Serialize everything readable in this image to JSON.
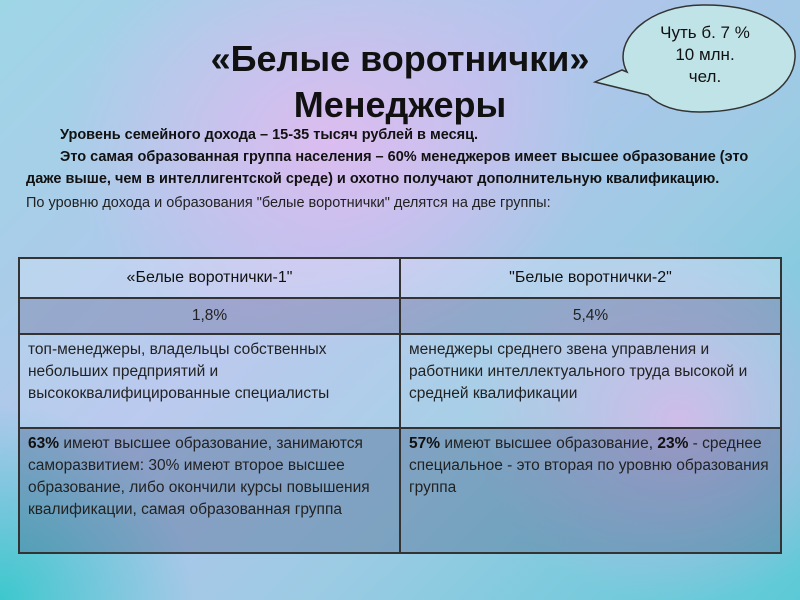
{
  "title": {
    "line1": "«Белые воротнички»",
    "line2": "Менеджеры"
  },
  "callout": {
    "line1": "Чуть б. 7 %",
    "line2": "10 млн.",
    "line3": "чел.",
    "fill": "#bfe3e6"
  },
  "intro": {
    "p1": "Уровень семейного дохода – 15-35 тысяч рублей в месяц.",
    "p2": "Это самая образованная группа населения – 60% менеджеров имеет высшее образование (это даже выше, чем в интеллигентской среде) и охотно получают дополнительную квалификацию.",
    "note": "По уровню дохода и образования \"белые воротнички\" делятся на две группы:"
  },
  "table": {
    "headers": [
      "«Белые воротнички-1\"",
      "\"Белые воротнички-2\""
    ],
    "shares": [
      "1,8%",
      "5,4%"
    ],
    "descriptions": [
      "топ-менеджеры, владельцы собственных небольших предприятий и высококвалифицированные специалисты",
      "менеджеры среднего звена управления и работники интеллектуального труда высокой и средней квалификации"
    ],
    "education": [
      {
        "bold": "63%",
        "text": " имеют высшее образование, занимаются саморазвитием: 30% имеют второе высшее образование, либо окончили курсы повышения квалификации, самая образованная группа"
      },
      {
        "bold": "57%",
        "text": " имеют высшее образование, ",
        "bold2": "23%",
        "text2": " - среднее специальное - это вторая по уровню образования группа"
      }
    ]
  }
}
